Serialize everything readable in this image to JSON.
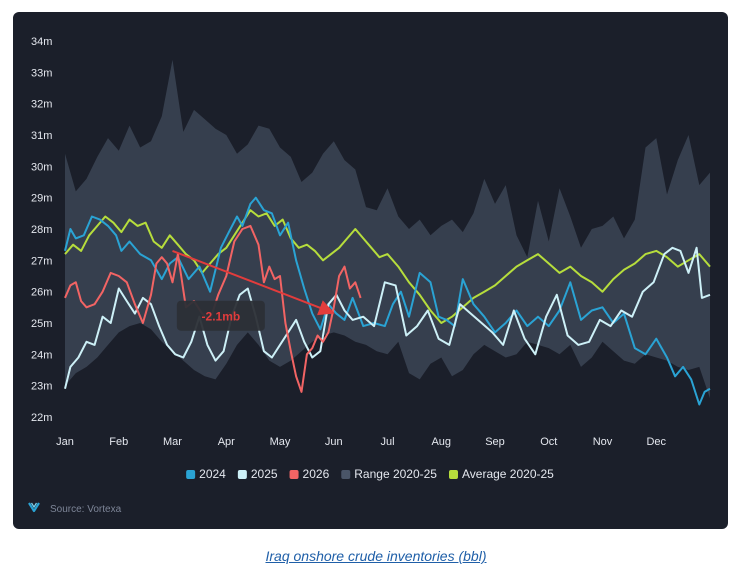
{
  "caption": "Iraq onshore crude inventories (bbl)",
  "source": "Source: Vortexa",
  "chart_data": {
    "type": "line",
    "unit": "bbl",
    "y_ticks": [
      "22m",
      "23m",
      "24m",
      "25m",
      "26m",
      "27m",
      "28m",
      "29m",
      "30m",
      "31m",
      "32m",
      "33m",
      "34m"
    ],
    "ylim": [
      22,
      34
    ],
    "x_ticks": [
      "Jan",
      "Feb",
      "Mar",
      "Apr",
      "May",
      "Jun",
      "Jul",
      "Aug",
      "Sep",
      "Oct",
      "Nov",
      "Dec"
    ],
    "xlim": [
      0,
      12
    ],
    "grid": false,
    "legend_position": "bottom",
    "series": [
      {
        "name": "2024",
        "color": "#2aa3d4",
        "x": [
          0.0,
          0.1,
          0.2,
          0.35,
          0.5,
          0.65,
          0.8,
          0.95,
          1.05,
          1.2,
          1.4,
          1.6,
          1.8,
          1.95,
          2.1,
          2.3,
          2.5,
          2.7,
          2.9,
          3.05,
          3.2,
          3.3,
          3.45,
          3.55,
          3.7,
          3.85,
          4.0,
          4.15,
          4.3,
          4.45,
          4.6,
          4.75,
          4.9,
          5.05,
          5.2,
          5.35,
          5.55,
          5.75,
          5.95,
          6.1,
          6.25,
          6.4,
          6.6,
          6.8,
          6.95,
          7.1,
          7.25,
          7.4,
          7.6,
          7.8,
          8.0,
          8.2,
          8.4,
          8.6,
          8.8,
          9.0,
          9.2,
          9.4,
          9.6,
          9.8,
          10.0,
          10.2,
          10.4,
          10.6,
          10.8,
          11.0,
          11.2,
          11.35,
          11.5,
          11.65,
          11.8,
          11.9,
          12.0
        ],
        "y": [
          27.3,
          28.0,
          27.7,
          27.8,
          28.4,
          28.3,
          28.1,
          27.8,
          27.3,
          27.6,
          27.2,
          27.0,
          26.4,
          26.9,
          27.1,
          26.4,
          26.8,
          26.0,
          27.4,
          27.9,
          28.4,
          28.1,
          28.8,
          29.0,
          28.6,
          28.5,
          27.8,
          28.2,
          27.0,
          26.1,
          25.3,
          24.8,
          25.6,
          25.3,
          25.1,
          25.8,
          24.9,
          25.0,
          24.9,
          25.6,
          26.0,
          25.2,
          26.6,
          26.3,
          25.2,
          25.1,
          24.9,
          26.4,
          25.6,
          25.2,
          24.7,
          25.0,
          25.4,
          24.9,
          25.2,
          24.9,
          25.4,
          26.3,
          25.1,
          25.4,
          25.5,
          25.0,
          25.3,
          24.2,
          24.0,
          24.5,
          23.9,
          23.3,
          23.6,
          23.2,
          22.4,
          22.8,
          22.9
        ]
      },
      {
        "name": "2025",
        "color": "#cdf0f7",
        "x": [
          0.0,
          0.1,
          0.25,
          0.4,
          0.55,
          0.7,
          0.85,
          1.0,
          1.15,
          1.3,
          1.45,
          1.6,
          1.75,
          1.9,
          2.05,
          2.2,
          2.35,
          2.5,
          2.65,
          2.8,
          2.95,
          3.1,
          3.25,
          3.4,
          3.55,
          3.7,
          3.85,
          4.0,
          4.15,
          4.3,
          4.45,
          4.6,
          4.75,
          4.9,
          5.05,
          5.2,
          5.35,
          5.55,
          5.75,
          5.95,
          6.15,
          6.35,
          6.55,
          6.75,
          6.95,
          7.15,
          7.35,
          7.55,
          7.75,
          7.95,
          8.15,
          8.35,
          8.55,
          8.75,
          8.95,
          9.15,
          9.35,
          9.55,
          9.75,
          9.95,
          10.15,
          10.35,
          10.55,
          10.75,
          10.95,
          11.15,
          11.3,
          11.45,
          11.6,
          11.75,
          11.85,
          12.0
        ],
        "y": [
          22.9,
          23.6,
          23.9,
          24.4,
          24.3,
          25.2,
          25.0,
          26.1,
          25.7,
          25.3,
          25.8,
          25.6,
          24.9,
          24.3,
          24.0,
          23.9,
          24.4,
          25.2,
          24.3,
          23.8,
          24.1,
          25.2,
          25.9,
          26.1,
          25.2,
          24.1,
          23.9,
          24.3,
          24.7,
          25.1,
          24.4,
          23.9,
          24.1,
          25.6,
          25.9,
          25.4,
          25.1,
          25.2,
          24.9,
          26.3,
          26.2,
          24.6,
          24.9,
          25.4,
          24.5,
          24.3,
          25.6,
          25.3,
          25.0,
          24.7,
          24.3,
          25.4,
          24.5,
          24.0,
          25.2,
          25.9,
          24.6,
          24.3,
          24.4,
          25.1,
          24.9,
          25.4,
          25.2,
          26.0,
          26.3,
          27.2,
          27.4,
          27.3,
          26.6,
          27.4,
          25.8,
          25.9
        ]
      },
      {
        "name": "2026",
        "color": "#f26464",
        "x": [
          0.0,
          0.1,
          0.2,
          0.3,
          0.4,
          0.55,
          0.7,
          0.85,
          1.0,
          1.15,
          1.3,
          1.45,
          1.6,
          1.7,
          1.8,
          1.9,
          2.0,
          2.1,
          2.25,
          2.4,
          2.55,
          2.7,
          2.85,
          3.0,
          3.15,
          3.3,
          3.45,
          3.6,
          3.7,
          3.8,
          3.9,
          4.0,
          4.1,
          4.2,
          4.3,
          4.4,
          4.5,
          4.6,
          4.7,
          4.8,
          4.9,
          5.0,
          5.1,
          5.2,
          5.3,
          5.4,
          5.5
        ],
        "y": [
          25.8,
          26.2,
          26.3,
          25.7,
          25.5,
          25.6,
          26.0,
          26.6,
          26.5,
          26.3,
          25.6,
          25.0,
          25.9,
          26.9,
          27.1,
          26.9,
          26.3,
          27.2,
          25.5,
          25.7,
          25.3,
          25.1,
          25.9,
          26.5,
          27.6,
          28.0,
          28.1,
          27.5,
          26.3,
          26.8,
          26.4,
          26.5,
          25.0,
          24.1,
          23.3,
          22.8,
          24.0,
          24.2,
          24.6,
          24.4,
          24.7,
          25.5,
          26.5,
          26.8,
          26.1,
          26.3,
          25.8
        ]
      },
      {
        "name": "Range 2020-25",
        "color": "#4a5568",
        "x": [
          0.0,
          0.2,
          0.4,
          0.6,
          0.8,
          1.0,
          1.2,
          1.4,
          1.6,
          1.8,
          2.0,
          2.2,
          2.4,
          2.6,
          2.8,
          3.0,
          3.2,
          3.4,
          3.6,
          3.8,
          4.0,
          4.2,
          4.4,
          4.6,
          4.8,
          5.0,
          5.2,
          5.4,
          5.6,
          5.8,
          6.0,
          6.2,
          6.4,
          6.6,
          6.8,
          7.0,
          7.2,
          7.4,
          7.6,
          7.8,
          8.0,
          8.2,
          8.4,
          8.6,
          8.8,
          9.0,
          9.2,
          9.4,
          9.6,
          9.8,
          10.0,
          10.2,
          10.4,
          10.6,
          10.8,
          11.0,
          11.2,
          11.4,
          11.6,
          11.8,
          12.0
        ],
        "low": [
          23.0,
          23.4,
          23.6,
          23.9,
          24.3,
          24.7,
          24.9,
          25.0,
          24.8,
          24.4,
          24.1,
          23.8,
          23.5,
          23.3,
          23.2,
          23.7,
          24.3,
          24.7,
          24.3,
          23.8,
          23.6,
          23.8,
          24.1,
          24.4,
          24.6,
          24.7,
          24.6,
          24.4,
          24.3,
          24.1,
          24.0,
          24.4,
          23.4,
          23.2,
          23.7,
          23.9,
          23.3,
          23.5,
          24.0,
          24.3,
          24.1,
          23.9,
          24.0,
          24.4,
          24.3,
          24.2,
          24.0,
          24.3,
          23.6,
          23.9,
          24.4,
          24.1,
          23.8,
          23.7,
          24.0,
          23.9,
          23.8,
          23.6,
          23.5,
          23.6,
          22.6
        ],
        "high": [
          30.4,
          29.2,
          29.6,
          30.3,
          30.9,
          30.5,
          31.3,
          30.6,
          30.8,
          31.6,
          33.4,
          31.1,
          31.8,
          31.5,
          31.2,
          31.0,
          30.4,
          30.7,
          31.3,
          31.2,
          30.6,
          30.3,
          29.5,
          29.8,
          30.4,
          30.8,
          30.2,
          29.9,
          28.7,
          28.6,
          29.3,
          28.4,
          28.0,
          28.3,
          27.8,
          28.1,
          28.3,
          27.9,
          28.5,
          29.6,
          28.8,
          29.4,
          27.8,
          27.1,
          28.9,
          27.6,
          29.3,
          28.4,
          27.4,
          28.0,
          28.1,
          28.4,
          27.7,
          28.3,
          30.6,
          30.9,
          29.1,
          30.2,
          31.0,
          29.4,
          29.8
        ]
      },
      {
        "name": "Average 2020-25",
        "color": "#b6dd3c",
        "x": [
          0.0,
          0.15,
          0.3,
          0.45,
          0.6,
          0.75,
          0.9,
          1.05,
          1.2,
          1.35,
          1.5,
          1.65,
          1.8,
          1.95,
          2.1,
          2.25,
          2.4,
          2.55,
          2.7,
          2.85,
          3.0,
          3.15,
          3.3,
          3.45,
          3.6,
          3.75,
          3.9,
          4.05,
          4.2,
          4.35,
          4.5,
          4.65,
          4.8,
          4.95,
          5.1,
          5.25,
          5.4,
          5.55,
          5.7,
          5.85,
          6.0,
          6.2,
          6.4,
          6.6,
          6.8,
          7.0,
          7.2,
          7.4,
          7.6,
          7.8,
          8.0,
          8.2,
          8.4,
          8.6,
          8.8,
          9.0,
          9.2,
          9.4,
          9.6,
          9.8,
          10.0,
          10.2,
          10.4,
          10.6,
          10.8,
          11.0,
          11.2,
          11.4,
          11.6,
          11.8,
          12.0
        ],
        "y": [
          27.2,
          27.5,
          27.3,
          27.8,
          28.1,
          28.4,
          28.2,
          27.9,
          28.3,
          28.1,
          28.2,
          27.6,
          27.4,
          27.8,
          27.5,
          27.2,
          27.0,
          26.6,
          26.9,
          27.2,
          27.4,
          27.8,
          28.2,
          28.6,
          28.4,
          28.5,
          28.1,
          28.3,
          27.7,
          27.4,
          27.5,
          27.3,
          27.0,
          27.2,
          27.4,
          27.7,
          28.0,
          27.7,
          27.4,
          27.1,
          27.2,
          26.8,
          26.3,
          25.9,
          25.4,
          25.0,
          25.2,
          25.5,
          25.8,
          26.0,
          26.2,
          26.5,
          26.8,
          27.0,
          27.2,
          26.9,
          26.6,
          26.8,
          26.5,
          26.3,
          26.0,
          26.4,
          26.7,
          26.9,
          27.2,
          27.3,
          27.1,
          26.8,
          27.0,
          27.2,
          26.8
        ]
      }
    ],
    "annotations": [
      {
        "label": "-2.1mb",
        "type": "arrow",
        "from": [
          2.0,
          27.3
        ],
        "to": [
          4.95,
          25.35
        ],
        "label_at": [
          2.9,
          25.2
        ],
        "color": "#e23c3c"
      }
    ]
  }
}
